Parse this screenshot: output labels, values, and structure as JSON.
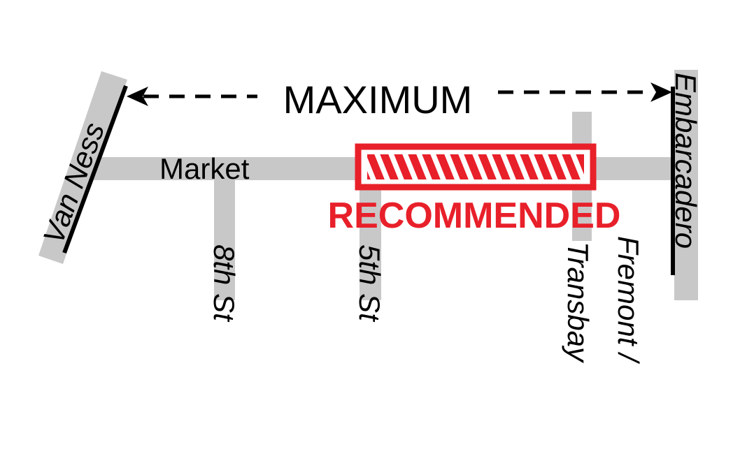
{
  "labels": {
    "maximum": "MAXIMUM",
    "recommended": "RECOMMENDED",
    "market": "Market",
    "van_ness": "Van Ness",
    "eighth_st": "8th St",
    "fifth_st": "5th St",
    "transbay": "Transbay",
    "fremont": "Fremont /",
    "embarcadero": "Embarcadero"
  },
  "colors": {
    "street": "#c8c8c8",
    "recommended": "#e8202a",
    "line": "#000000"
  }
}
